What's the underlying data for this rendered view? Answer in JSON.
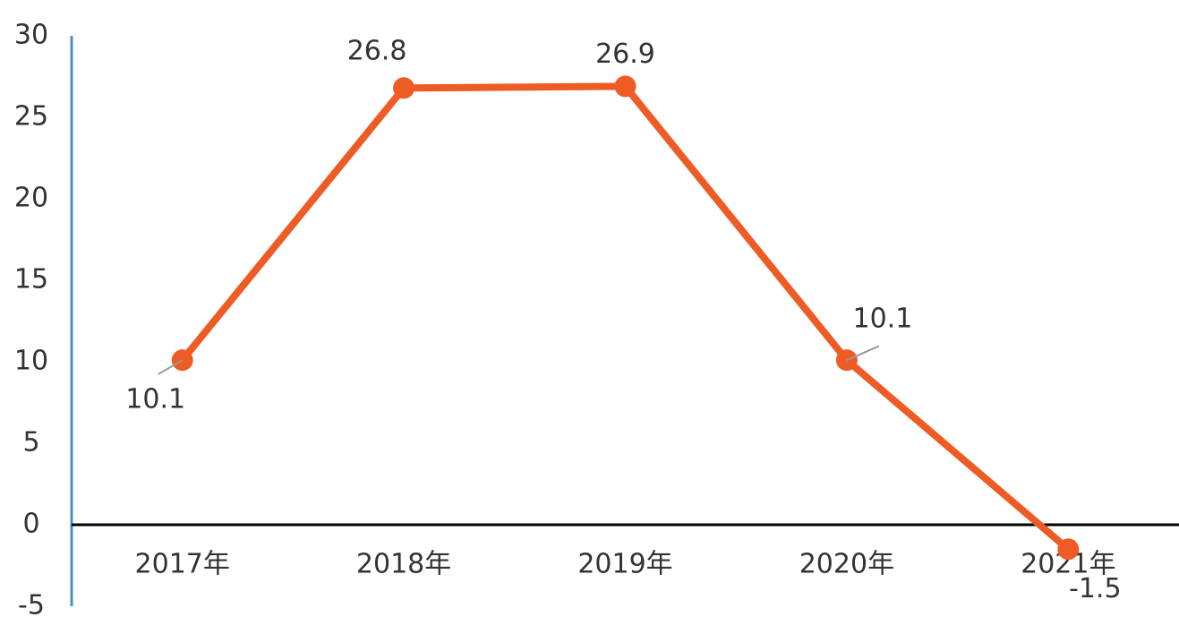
{
  "chart_data": {
    "type": "line",
    "categories": [
      "2017年",
      "2018年",
      "2019年",
      "2020年",
      "2021年"
    ],
    "series": [
      {
        "name": "value",
        "color": "#ee5b25",
        "values": [
          10.1,
          26.8,
          26.9,
          10.1,
          -1.5
        ]
      }
    ],
    "ylim": [
      -5,
      30
    ],
    "yticks": [
      -5,
      0,
      5,
      10,
      15,
      20,
      25,
      30
    ]
  }
}
